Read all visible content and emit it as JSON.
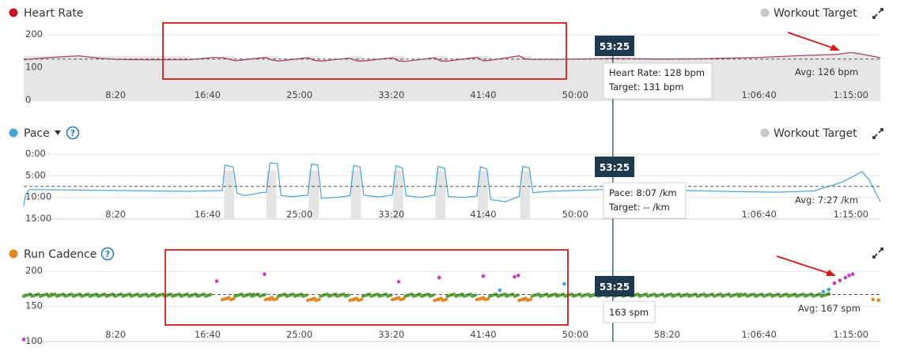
{
  "colors": {
    "heart_rate": "#c8102e",
    "heart_rate_line": "#b0405a",
    "pace": "#4aa3d8",
    "cadence_normal": "#5aa53a",
    "cadence_slow": "#e0892a",
    "cadence_high": "#c43fbf",
    "cadence_mid": "#3aa3d8",
    "target_dot": "#c8c8c8",
    "interval_band": "#e4e4e4",
    "tooltip_time_bg": "#1f3a4f",
    "highlight_box": "#d21a1a",
    "arrow": "#d21a1a",
    "help_icon": "#2a7ab8"
  },
  "x_axis_ticks": [
    "8:20",
    "16:40",
    "25:00",
    "33:20",
    "41:40",
    "50:00",
    "58:20",
    "1:06:40",
    "1:15:00"
  ],
  "x_axis_ticks_seconds": [
    500,
    1000,
    1500,
    2000,
    2500,
    3000,
    3500,
    4000,
    4500
  ],
  "cursor_time_seconds": 3205,
  "duration_seconds": 4660,
  "chart_data": [
    {
      "type": "area",
      "title": "Heart Rate",
      "target_legend": "Workout Target",
      "y_ticks": [
        "200",
        "100",
        "0"
      ],
      "y_tick_values": [
        200,
        100,
        0
      ],
      "ylim": [
        0,
        200
      ],
      "y_reversed": false,
      "avg_value": 126,
      "avg_label": "Avg: 126 bpm",
      "tooltip": {
        "time": "53:25",
        "lines": [
          "Heart Rate: 128 bpm",
          "Target: 131 bpm"
        ]
      },
      "interval_bands_seconds": [
        [
          0,
          900
        ],
        [
          1080,
          1150
        ],
        [
          1315,
          1385
        ],
        [
          1545,
          1615
        ],
        [
          1775,
          1845
        ],
        [
          2005,
          2075
        ],
        [
          2235,
          2305
        ],
        [
          2465,
          2535
        ],
        [
          2695,
          2765
        ]
      ],
      "series": [
        {
          "x": [
            0,
            150,
            300,
            420,
            510,
            600,
            900,
            960,
            1030,
            1080,
            1130,
            1150,
            1315,
            1350,
            1385,
            1545,
            1580,
            1615,
            1775,
            1810,
            1845,
            2005,
            2040,
            2075,
            2235,
            2270,
            2305,
            2465,
            2500,
            2535,
            2695,
            2730,
            2765,
            2900,
            3205,
            3450,
            3700,
            4000,
            4250,
            4420,
            4500,
            4560,
            4660
          ],
          "values": [
            124,
            131,
            136,
            128,
            125,
            124,
            124,
            127,
            131,
            130,
            124,
            121,
            131,
            123,
            120,
            130,
            122,
            120,
            129,
            121,
            120,
            130,
            120,
            119,
            130,
            120,
            120,
            131,
            121,
            122,
            136,
            126,
            125,
            125,
            128,
            126,
            127,
            131,
            137,
            140,
            146,
            141,
            130
          ]
        }
      ]
    },
    {
      "type": "line",
      "title": "Pace",
      "target_legend": "Workout Target",
      "y_ticks": [
        "0:00",
        "5:00",
        "10:00",
        "15:00"
      ],
      "y_tick_values": [
        0,
        5,
        10,
        15
      ],
      "ylim": [
        0,
        15
      ],
      "y_reversed": true,
      "avg_value": 7.45,
      "avg_label": "Avg: 7:27 /km",
      "tooltip": {
        "time": "53:25",
        "lines": [
          "Pace: 8:07 /km",
          "Target: -- /km"
        ]
      },
      "interval_bands_seconds": [
        [
          1090,
          1145
        ],
        [
          1320,
          1375
        ],
        [
          1550,
          1605
        ],
        [
          1780,
          1835
        ],
        [
          2010,
          2065
        ],
        [
          2240,
          2295
        ],
        [
          2470,
          2525
        ],
        [
          2700,
          2755
        ]
      ],
      "series": [
        {
          "x": [
            0,
            10,
            30,
            100,
            300,
            500,
            700,
            900,
            1080,
            1095,
            1140,
            1160,
            1200,
            1280,
            1320,
            1340,
            1380,
            1400,
            1460,
            1545,
            1565,
            1600,
            1620,
            1700,
            1775,
            1795,
            1830,
            1850,
            1930,
            2005,
            2025,
            2060,
            2080,
            2160,
            2235,
            2255,
            2290,
            2310,
            2390,
            2465,
            2485,
            2520,
            2540,
            2620,
            2695,
            2715,
            2750,
            2770,
            2850,
            3000,
            3205,
            3500,
            3800,
            4100,
            4300,
            4450,
            4520,
            4560,
            4600,
            4660
          ],
          "values": [
            12,
            9.5,
            8.2,
            8.2,
            8.3,
            8.4,
            8.5,
            8.6,
            8.4,
            2.5,
            3.0,
            9.0,
            9.6,
            9.0,
            8.8,
            2.0,
            2.2,
            9.6,
            9.8,
            9.5,
            2.3,
            2.5,
            10.2,
            10.0,
            9.6,
            2.6,
            3.0,
            9.5,
            9.9,
            9.5,
            2.7,
            3.2,
            9.6,
            10.0,
            9.5,
            2.8,
            3.3,
            9.8,
            10.0,
            9.7,
            2.9,
            3.5,
            10.5,
            11.0,
            9.8,
            2.8,
            3.2,
            8.9,
            8.6,
            8.4,
            8.1,
            8.3,
            8.6,
            8.8,
            8.5,
            6.5,
            5.0,
            4.0,
            6.0,
            11.0
          ]
        }
      ]
    },
    {
      "type": "scatter",
      "title": "Run Cadence",
      "y_ticks": [
        "200",
        "150",
        "100"
      ],
      "y_tick_values": [
        200,
        150,
        100
      ],
      "ylim": [
        100,
        217
      ],
      "y_reversed": false,
      "avg_value": 167,
      "avg_label": "Avg: 167 spm",
      "tooltip": {
        "time": "53:25",
        "lines": [
          "163 spm"
        ]
      },
      "base_runs_seconds": [
        [
          0,
          1020,
          166
        ],
        [
          1080,
          1150,
          161
        ],
        [
          1150,
          1315,
          166
        ],
        [
          1315,
          1385,
          161
        ],
        [
          1385,
          1545,
          166
        ],
        [
          1545,
          1615,
          160
        ],
        [
          1615,
          1775,
          166
        ],
        [
          1775,
          1845,
          160
        ],
        [
          1845,
          2005,
          166
        ],
        [
          2005,
          2075,
          161
        ],
        [
          2075,
          2235,
          166
        ],
        [
          2235,
          2305,
          160
        ],
        [
          2305,
          2465,
          166
        ],
        [
          2465,
          2535,
          161
        ],
        [
          2535,
          2695,
          166
        ],
        [
          2695,
          2765,
          160
        ],
        [
          2765,
          4380,
          166
        ]
      ],
      "series": [
        {
          "name": "normal",
          "x": [
            150,
            400,
            700,
            950,
            1250,
            1500,
            1700,
            2150,
            2380,
            2620,
            2900,
            3100,
            3300,
            3600,
            3900,
            4200,
            4380
          ],
          "values": [
            167,
            166,
            167,
            165,
            167,
            166,
            166,
            167,
            166,
            167,
            166,
            166,
            167,
            166,
            167,
            166,
            168
          ]
        },
        {
          "name": "slow",
          "x": [
            1100,
            1340,
            1570,
            1800,
            2030,
            2260,
            2490,
            2720,
            4620,
            4650
          ],
          "values": [
            161,
            160,
            160,
            160,
            161,
            160,
            161,
            160,
            160,
            159
          ]
        },
        {
          "name": "high",
          "x": [
            0,
            1050,
            1310,
            2040,
            2260,
            2500,
            2670,
            2690,
            4410,
            4440,
            4470,
            4490,
            4510
          ],
          "values": [
            103,
            186,
            196,
            185,
            191,
            193,
            192,
            194,
            183,
            187,
            191,
            194,
            196
          ]
        },
        {
          "name": "mid",
          "x": [
            2590,
            2940,
            4350,
            4380
          ],
          "values": [
            173,
            182,
            171,
            174
          ]
        }
      ]
    }
  ]
}
